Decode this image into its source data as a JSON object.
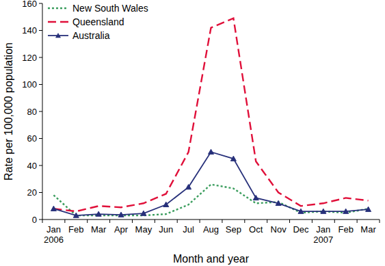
{
  "chart_data": {
    "type": "line",
    "x_label": "Month and year",
    "y_label": "Rate per 100,000 population",
    "categories": [
      "Jan\n2006",
      "Feb",
      "Mar",
      "Apr",
      "May",
      "Jun",
      "Jul",
      "Aug",
      "Sep",
      "Oct",
      "Nov",
      "Dec",
      "Jan\n2007",
      "Feb",
      "Mar"
    ],
    "series": [
      {
        "name": "New South Wales",
        "color": "#3a9d5d",
        "line_style": "dotted",
        "values": [
          18,
          3,
          3,
          3,
          3,
          4,
          11,
          26,
          23,
          12,
          13,
          5,
          6,
          5,
          8
        ]
      },
      {
        "name": "Queensland",
        "color": "#e0103a",
        "line_style": "dashed",
        "values": [
          8,
          6,
          10,
          9,
          12,
          19,
          50,
          142,
          149,
          43,
          20,
          10,
          12,
          16,
          14
        ]
      },
      {
        "name": "Australia",
        "color": "#27307a",
        "line_style": "solid",
        "marker": "triangle",
        "values": [
          8,
          3,
          4,
          3.5,
          4.5,
          11,
          24,
          50,
          45,
          16,
          12,
          6,
          6,
          6,
          7.5
        ]
      }
    ],
    "ylim": [
      0,
      160
    ],
    "yticks": [
      0,
      20,
      40,
      60,
      80,
      100,
      120,
      140,
      160
    ],
    "grid": false,
    "legend": "top-left"
  }
}
